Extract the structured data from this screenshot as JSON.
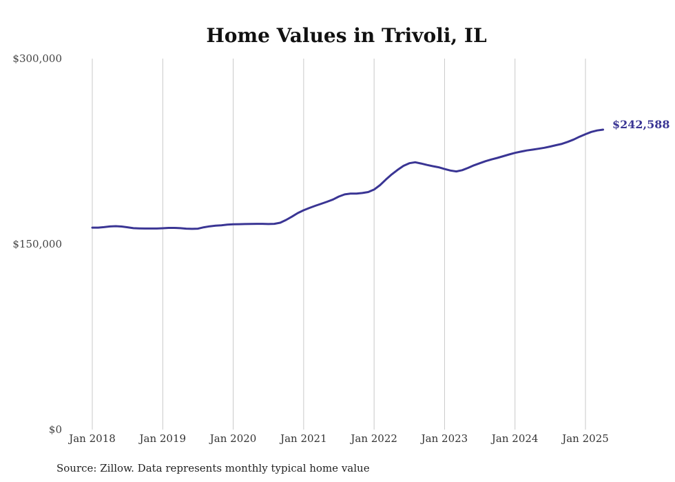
{
  "colors": {
    "line": "#3a3594",
    "grid": "#c8c8c8",
    "text": "#333333"
  },
  "chart_data": {
    "type": "line",
    "title": "Home Values in Trivoli, IL",
    "xlabel": "",
    "ylabel": "",
    "ylim": [
      0,
      300000
    ],
    "y_ticks": [
      0,
      150000,
      300000
    ],
    "y_tick_labels": [
      "$0",
      "$150,000",
      "$300,000"
    ],
    "x_tick_labels": [
      "Jan 2018",
      "Jan 2019",
      "Jan 2020",
      "Jan 2021",
      "Jan 2022",
      "Jan 2023",
      "Jan 2024",
      "Jan 2025"
    ],
    "x_range": [
      "2018-01",
      "2025-04"
    ],
    "grid": "vertical",
    "series": [
      {
        "values": [
          [
            "2018-01",
            163300
          ],
          [
            "2018-02",
            163300
          ],
          [
            "2018-03",
            163700
          ],
          [
            "2018-04",
            164300
          ],
          [
            "2018-05",
            164500
          ],
          [
            "2018-06",
            164200
          ],
          [
            "2018-07",
            163600
          ],
          [
            "2018-08",
            162900
          ],
          [
            "2018-09",
            162700
          ],
          [
            "2018-10",
            162600
          ],
          [
            "2018-11",
            162600
          ],
          [
            "2018-12",
            162600
          ],
          [
            "2019-01",
            162800
          ],
          [
            "2019-02",
            163100
          ],
          [
            "2019-03",
            163100
          ],
          [
            "2019-04",
            162900
          ],
          [
            "2019-05",
            162500
          ],
          [
            "2019-06",
            162300
          ],
          [
            "2019-07",
            162500
          ],
          [
            "2019-08",
            163600
          ],
          [
            "2019-09",
            164400
          ],
          [
            "2019-10",
            164900
          ],
          [
            "2019-11",
            165200
          ],
          [
            "2019-12",
            165700
          ],
          [
            "2020-01",
            166000
          ],
          [
            "2020-02",
            166100
          ],
          [
            "2020-03",
            166200
          ],
          [
            "2020-04",
            166300
          ],
          [
            "2020-05",
            166400
          ],
          [
            "2020-06",
            166400
          ],
          [
            "2020-07",
            166200
          ],
          [
            "2020-08",
            166400
          ],
          [
            "2020-09",
            167300
          ],
          [
            "2020-10",
            169500
          ],
          [
            "2020-11",
            172200
          ],
          [
            "2020-12",
            175100
          ],
          [
            "2021-01",
            177400
          ],
          [
            "2021-02",
            179300
          ],
          [
            "2021-03",
            181000
          ],
          [
            "2021-04",
            182600
          ],
          [
            "2021-05",
            184300
          ],
          [
            "2021-06",
            186100
          ],
          [
            "2021-07",
            188500
          ],
          [
            "2021-08",
            190200
          ],
          [
            "2021-09",
            190900
          ],
          [
            "2021-10",
            190900
          ],
          [
            "2021-11",
            191300
          ],
          [
            "2021-12",
            192100
          ],
          [
            "2022-01",
            194100
          ],
          [
            "2022-02",
            197700
          ],
          [
            "2022-03",
            202200
          ],
          [
            "2022-04",
            206400
          ],
          [
            "2022-05",
            210000
          ],
          [
            "2022-06",
            213300
          ],
          [
            "2022-07",
            215400
          ],
          [
            "2022-08",
            216200
          ],
          [
            "2022-09",
            215200
          ],
          [
            "2022-10",
            214000
          ],
          [
            "2022-11",
            213000
          ],
          [
            "2022-12",
            212100
          ],
          [
            "2023-01",
            210700
          ],
          [
            "2023-02",
            209500
          ],
          [
            "2023-03",
            208800
          ],
          [
            "2023-04",
            209800
          ],
          [
            "2023-05",
            211600
          ],
          [
            "2023-06",
            213700
          ],
          [
            "2023-07",
            215400
          ],
          [
            "2023-08",
            217100
          ],
          [
            "2023-09",
            218500
          ],
          [
            "2023-10",
            219700
          ],
          [
            "2023-11",
            221100
          ],
          [
            "2023-12",
            222500
          ],
          [
            "2024-01",
            223800
          ],
          [
            "2024-02",
            224800
          ],
          [
            "2024-03",
            225700
          ],
          [
            "2024-04",
            226400
          ],
          [
            "2024-05",
            227100
          ],
          [
            "2024-06",
            227900
          ],
          [
            "2024-07",
            228900
          ],
          [
            "2024-08",
            230000
          ],
          [
            "2024-09",
            231100
          ],
          [
            "2024-10",
            232700
          ],
          [
            "2024-11",
            234600
          ],
          [
            "2024-12",
            236900
          ],
          [
            "2025-01",
            238900
          ],
          [
            "2025-02",
            240700
          ],
          [
            "2025-03",
            241900
          ],
          [
            "2025-04",
            242588
          ]
        ]
      }
    ],
    "end_label": "$242,588",
    "source": "Source: Zillow. Data represents monthly typical home value"
  }
}
